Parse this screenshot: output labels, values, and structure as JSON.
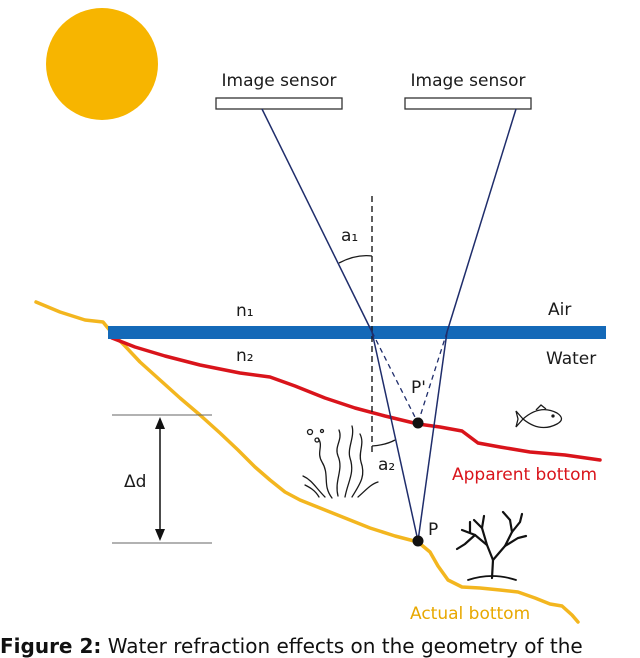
{
  "labels": {
    "sensor_left": "Image sensor",
    "sensor_right": "Image sensor",
    "angle_incidence": "a₁",
    "angle_refraction": "a₂",
    "index_air": "n₁",
    "index_water": "n₂",
    "medium_air": "Air",
    "medium_water": "Water",
    "point_apparent": "P'",
    "point_actual": "P",
    "depth_delta": "Δd",
    "apparent_bottom": "Apparent bottom",
    "actual_bottom": "Actual bottom"
  },
  "caption": {
    "prefix": "Figure 2:",
    "text": "Water refraction effects on the geometry of the"
  },
  "colors": {
    "sun": "#f7b500",
    "water_surface": "#1469b8",
    "apparent_bottom": "#d9141b",
    "actual_bottom": "#f3b61f",
    "rays": "#1f2d6b"
  },
  "icons": [
    "sun-icon",
    "fish-icon",
    "seaweed-icon",
    "coral-icon"
  ]
}
